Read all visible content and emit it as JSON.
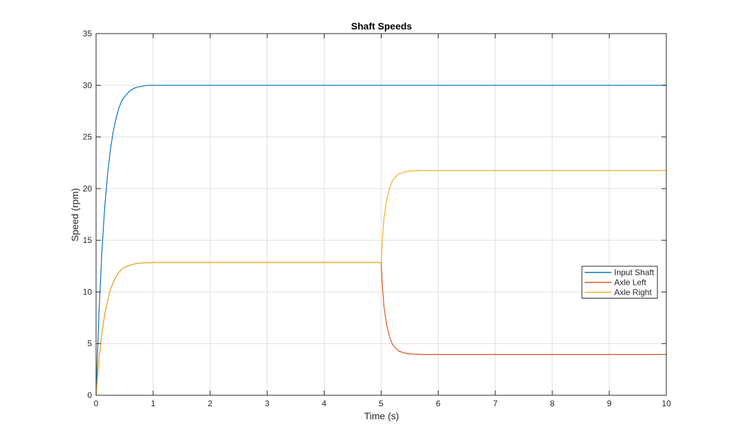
{
  "chart_data": {
    "type": "line",
    "title": "Shaft Speeds",
    "xlabel": "Time (s)",
    "ylabel": "Speed (rpm)",
    "xlim": [
      0,
      10
    ],
    "ylim": [
      0,
      35
    ],
    "xticks": [
      0,
      1,
      2,
      3,
      4,
      5,
      6,
      7,
      8,
      9,
      10
    ],
    "yticks": [
      0,
      5,
      10,
      15,
      20,
      25,
      30,
      35
    ],
    "grid": true,
    "legend_position": "east",
    "series": [
      {
        "name": "Input Shaft",
        "color": "#0072BD",
        "x": [
          0,
          0.05,
          0.1,
          0.15,
          0.2,
          0.25,
          0.3,
          0.35,
          0.4,
          0.45,
          0.5,
          0.6,
          0.7,
          0.8,
          0.9,
          1.0,
          1.5,
          2,
          3,
          4,
          5,
          6,
          7,
          8,
          9,
          10
        ],
        "y": [
          0,
          7.9,
          13.7,
          18.1,
          21.3,
          23.7,
          25.5,
          26.8,
          27.8,
          28.5,
          28.9,
          29.5,
          29.8,
          29.9,
          30.0,
          30.0,
          30.0,
          30.0,
          30.0,
          30.0,
          30.0,
          30.0,
          30.0,
          30.0,
          30.0,
          30.0
        ]
      },
      {
        "name": "Axle Left",
        "color": "#D95319",
        "x": [
          0,
          0.05,
          0.1,
          0.15,
          0.2,
          0.25,
          0.3,
          0.35,
          0.4,
          0.45,
          0.5,
          0.6,
          0.7,
          0.8,
          1.0,
          2,
          3,
          4,
          4.99,
          5.0,
          5.02,
          5.05,
          5.1,
          5.15,
          5.2,
          5.3,
          5.4,
          5.5,
          5.7,
          6,
          7,
          8,
          9,
          10
        ],
        "y": [
          0,
          3.4,
          5.9,
          7.8,
          9.1,
          10.2,
          10.9,
          11.5,
          11.9,
          12.2,
          12.4,
          12.6,
          12.75,
          12.8,
          12.85,
          12.85,
          12.85,
          12.85,
          12.85,
          12.85,
          10.6,
          8.5,
          6.7,
          5.6,
          4.9,
          4.3,
          4.1,
          4.0,
          3.95,
          3.95,
          3.95,
          3.95,
          3.95,
          3.95
        ]
      },
      {
        "name": "Axle Right",
        "color": "#EDB120",
        "x": [
          0,
          0.05,
          0.1,
          0.15,
          0.2,
          0.25,
          0.3,
          0.35,
          0.4,
          0.45,
          0.5,
          0.6,
          0.7,
          0.8,
          1.0,
          2,
          3,
          4,
          4.99,
          5.0,
          5.02,
          5.05,
          5.1,
          5.15,
          5.2,
          5.3,
          5.4,
          5.5,
          5.7,
          6,
          7,
          8,
          9,
          10
        ],
        "y": [
          0,
          3.4,
          5.9,
          7.8,
          9.1,
          10.2,
          10.9,
          11.5,
          11.9,
          12.2,
          12.4,
          12.6,
          12.75,
          12.8,
          12.85,
          12.85,
          12.85,
          12.85,
          12.85,
          12.85,
          15.1,
          17.2,
          19.0,
          20.1,
          20.8,
          21.4,
          21.6,
          21.7,
          21.75,
          21.75,
          21.75,
          21.75,
          21.75,
          21.75
        ]
      }
    ]
  }
}
